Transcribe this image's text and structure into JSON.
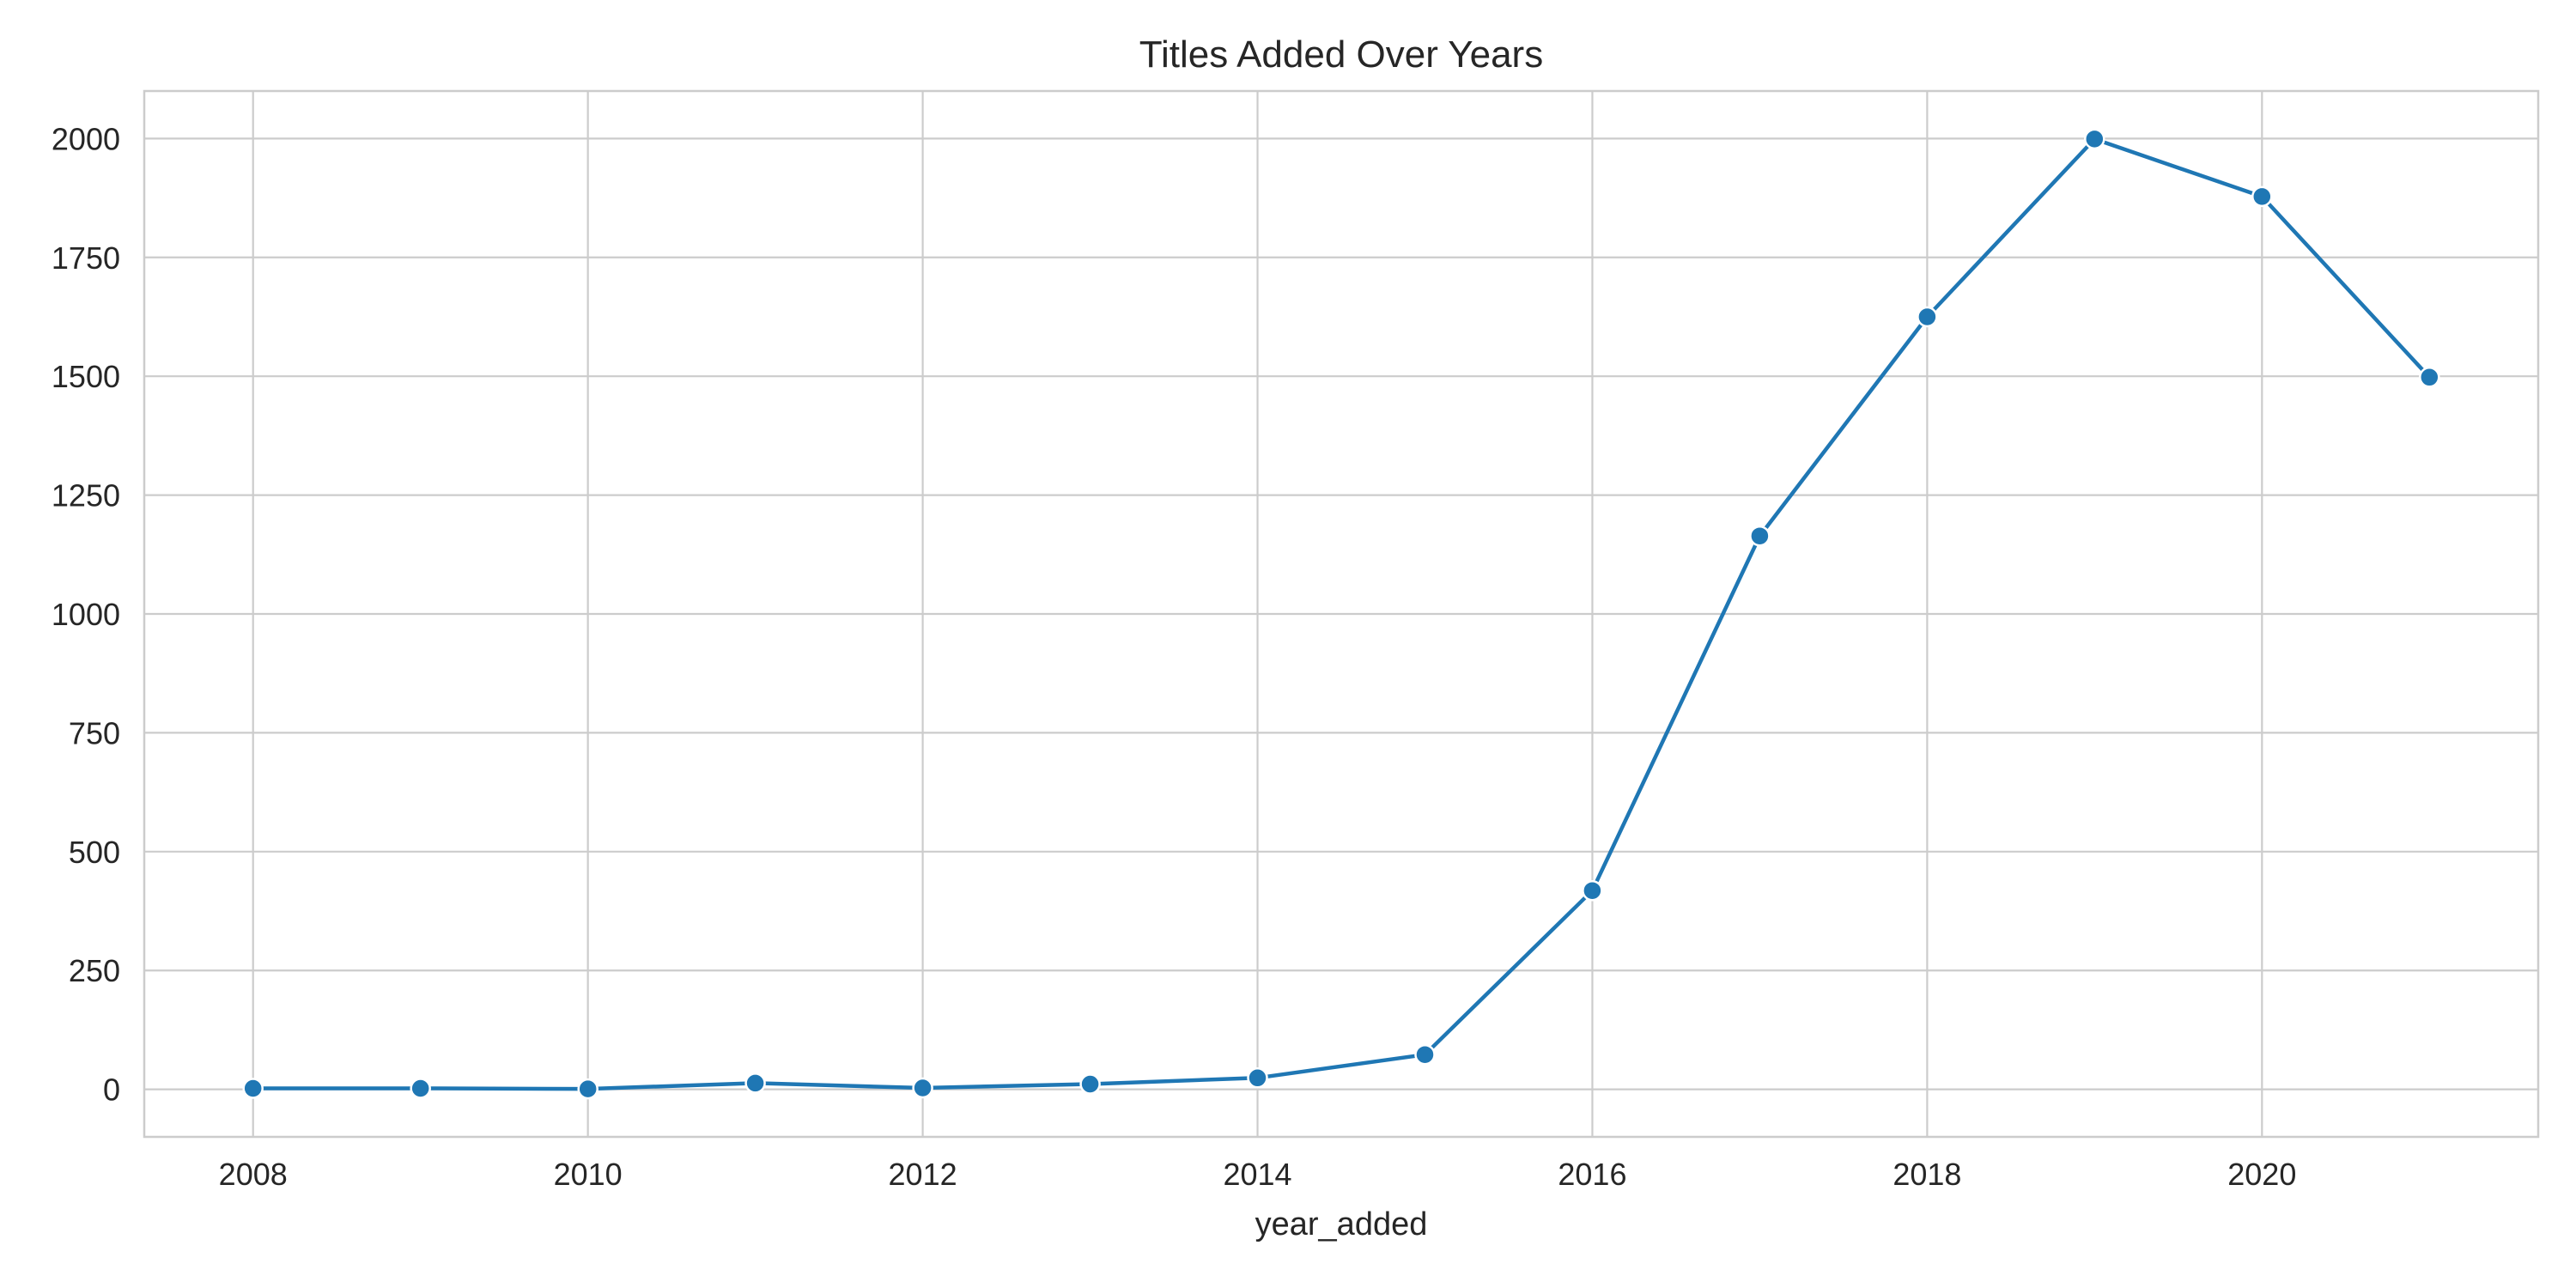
{
  "chart_data": {
    "type": "line",
    "title": "Titles Added Over Years",
    "xlabel": "year_added",
    "ylabel": "",
    "x": [
      2008,
      2009,
      2010,
      2011,
      2012,
      2013,
      2014,
      2015,
      2016,
      2017,
      2018,
      2019,
      2020,
      2021
    ],
    "series": [
      {
        "values": [
          2,
          2,
          1,
          13,
          3,
          11,
          24,
          73,
          418,
          1164,
          1625,
          1999,
          1878,
          1498
        ]
      }
    ],
    "xticks": [
      "2008",
      "2010",
      "2012",
      "2014",
      "2016",
      "2018",
      "2020"
    ],
    "yticks": [
      "0",
      "250",
      "500",
      "750",
      "1000",
      "1250",
      "1500",
      "1750",
      "2000"
    ],
    "xlim": [
      2007.35,
      2021.65
    ],
    "ylim": [
      -100,
      2100
    ],
    "grid": true,
    "marker": "circle",
    "colors": {
      "line": "#1f77b4",
      "marker_edge": "#ffffff",
      "grid": "#cccccc",
      "text": "#262626",
      "background": "#ffffff"
    }
  }
}
